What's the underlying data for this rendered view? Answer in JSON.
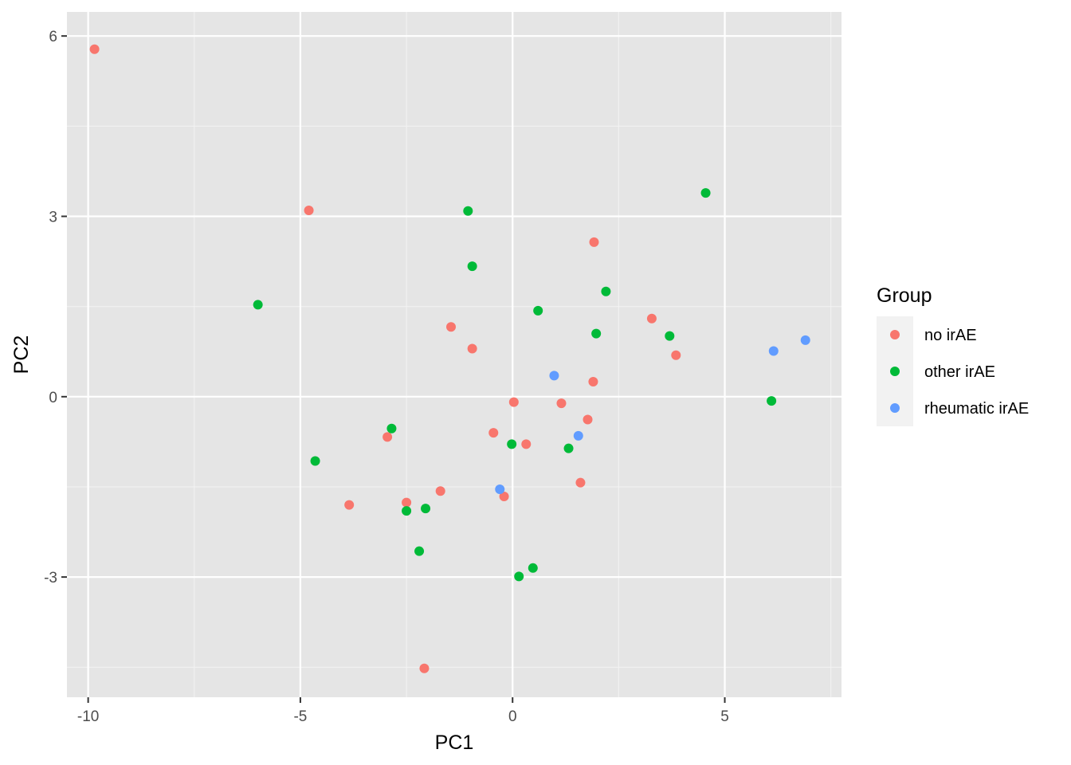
{
  "chart_data": {
    "type": "scatter",
    "xlabel": "PC1",
    "ylabel": "PC2",
    "xlim": [
      -10.5,
      7.75
    ],
    "ylim": [
      -5.0,
      6.4
    ],
    "x_ticks": [
      -10,
      -5,
      0,
      5
    ],
    "x_tick_labels": [
      "-10",
      "-5",
      "0",
      "5"
    ],
    "y_ticks": [
      -3,
      0,
      3,
      6
    ],
    "y_tick_labels": [
      "-3",
      "0",
      "3",
      "6"
    ],
    "grid": true,
    "legend": {
      "title": "Group",
      "position": "right"
    },
    "series": [
      {
        "name": "no irAE",
        "color": "#F8766D",
        "points": [
          [
            -9.85,
            5.78
          ],
          [
            -4.8,
            3.1
          ],
          [
            1.92,
            2.57
          ],
          [
            -1.45,
            1.16
          ],
          [
            -0.95,
            0.8
          ],
          [
            3.28,
            1.3
          ],
          [
            3.85,
            0.69
          ],
          [
            1.9,
            0.25
          ],
          [
            0.03,
            -0.09
          ],
          [
            1.15,
            -0.11
          ],
          [
            1.77,
            -0.38
          ],
          [
            -2.95,
            -0.67
          ],
          [
            -0.45,
            -0.6
          ],
          [
            0.32,
            -0.79
          ],
          [
            1.6,
            -1.43
          ],
          [
            -3.85,
            -1.8
          ],
          [
            -2.5,
            -1.76
          ],
          [
            -1.7,
            -1.57
          ],
          [
            -0.2,
            -1.66
          ],
          [
            -2.08,
            -4.52
          ]
        ]
      },
      {
        "name": "other irAE",
        "color": "#00BA38",
        "points": [
          [
            4.55,
            3.39
          ],
          [
            -1.05,
            3.09
          ],
          [
            -0.95,
            2.17
          ],
          [
            2.2,
            1.75
          ],
          [
            -6.0,
            1.53
          ],
          [
            0.6,
            1.43
          ],
          [
            1.97,
            1.05
          ],
          [
            3.7,
            1.01
          ],
          [
            6.1,
            -0.07
          ],
          [
            -2.85,
            -0.53
          ],
          [
            -0.02,
            -0.79
          ],
          [
            1.32,
            -0.86
          ],
          [
            -4.65,
            -1.07
          ],
          [
            -2.5,
            -1.9
          ],
          [
            -2.05,
            -1.86
          ],
          [
            -2.2,
            -2.57
          ],
          [
            0.48,
            -2.85
          ],
          [
            0.15,
            -2.99
          ]
        ]
      },
      {
        "name": "rheumatic irAE",
        "color": "#619CFF",
        "points": [
          [
            6.15,
            0.76
          ],
          [
            6.9,
            0.94
          ],
          [
            0.98,
            0.35
          ],
          [
            1.55,
            -0.65
          ],
          [
            -0.3,
            -1.54
          ]
        ]
      }
    ]
  }
}
